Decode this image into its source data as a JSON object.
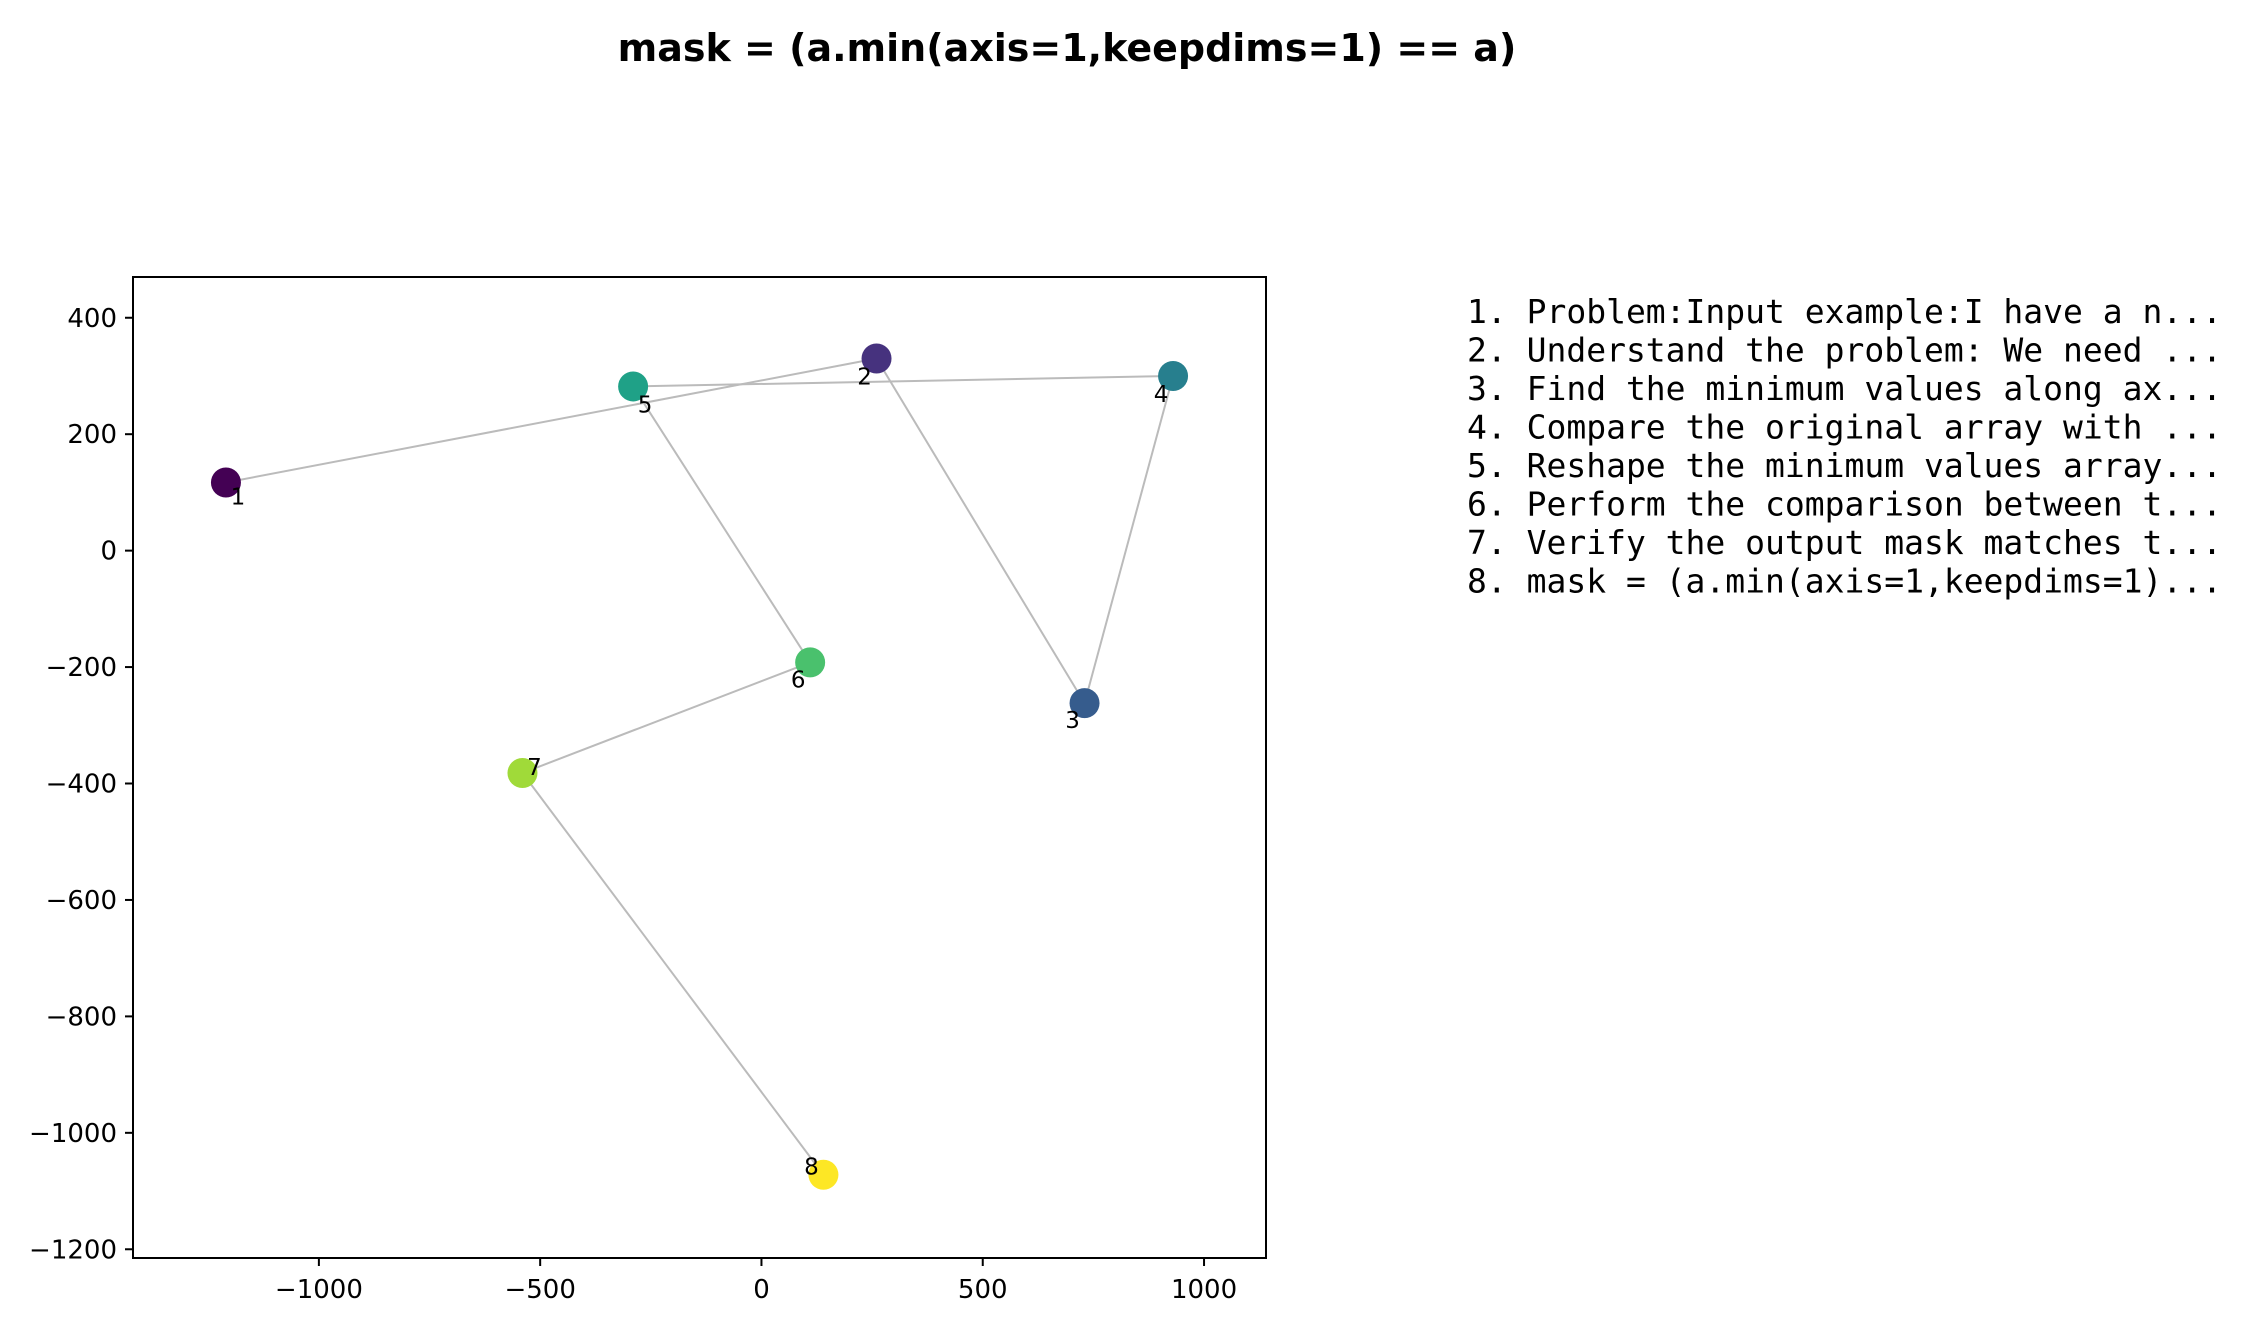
{
  "chart_data": {
    "type": "scatter",
    "title": "mask = (a.min(axis=1,keepdims=1) == a)",
    "xlabel": "",
    "ylabel": "",
    "xlim": [
      -1420,
      1140
    ],
    "ylim": [
      -1215,
      470
    ],
    "xticks": [
      -1000,
      -500,
      0,
      500,
      1000
    ],
    "xtick_labels": [
      "−1000",
      "−500",
      "0",
      "500",
      "1000"
    ],
    "yticks": [
      400,
      200,
      0,
      -200,
      -400,
      -600,
      -800,
      -1000,
      -1200
    ],
    "ytick_labels": [
      "400",
      "200",
      "0",
      "−200",
      "−400",
      "−600",
      "−800",
      "−1000",
      "−1200"
    ],
    "grid": false,
    "connector_color": "#bbbbbb",
    "points": [
      {
        "label": "1",
        "x": -1210,
        "y": 117,
        "color": "#440154"
      },
      {
        "label": "2",
        "x": 260,
        "y": 330,
        "color": "#46327e"
      },
      {
        "label": "3",
        "x": 730,
        "y": -262,
        "color": "#365c8d"
      },
      {
        "label": "4",
        "x": 930,
        "y": 300,
        "color": "#277f8e"
      },
      {
        "label": "5",
        "x": -290,
        "y": 282,
        "color": "#1fa187"
      },
      {
        "label": "6",
        "x": 110,
        "y": -192,
        "color": "#4ac16d"
      },
      {
        "label": "7",
        "x": -540,
        "y": -382,
        "color": "#a0da39"
      },
      {
        "label": "8",
        "x": 140,
        "y": -1072,
        "color": "#fde725"
      }
    ],
    "path_order": [
      "1",
      "2",
      "3",
      "4",
      "5",
      "6",
      "7",
      "8"
    ]
  },
  "steps": [
    "1. Problem:Input example:I have a n...",
    "2. Understand the problem: We need ...",
    "3. Find the minimum values along ax...",
    "4. Compare the original array with ...",
    "5. Reshape the minimum values array...",
    "6. Perform the comparison between t...",
    "7. Verify the output mask matches t...",
    "8. mask = (a.min(axis=1,keepdims=1)..."
  ]
}
